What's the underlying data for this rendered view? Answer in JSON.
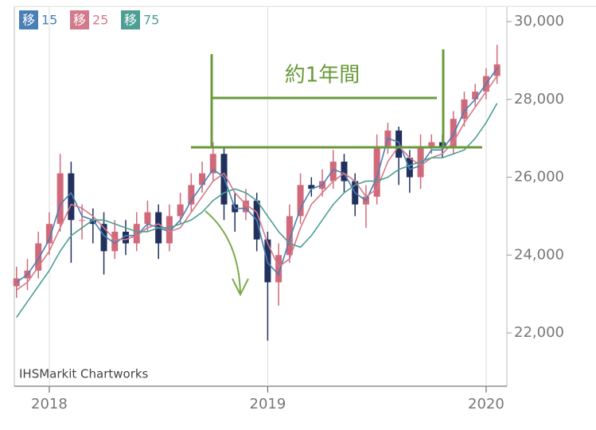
{
  "chart_data": {
    "type": "candlestick",
    "ma_label": "移",
    "source": "IHSMarkit Chartworks",
    "annotation": "約1年間",
    "x": [
      2017.85,
      2017.9,
      2017.95,
      2018.0,
      2018.05,
      2018.1,
      2018.15,
      2018.2,
      2018.25,
      2018.3,
      2018.35,
      2018.4,
      2018.45,
      2018.5,
      2018.55,
      2018.6,
      2018.65,
      2018.7,
      2018.75,
      2018.8,
      2018.85,
      2018.9,
      2018.95,
      2019.0,
      2019.05,
      2019.1,
      2019.15,
      2019.2,
      2019.25,
      2019.3,
      2019.35,
      2019.4,
      2019.45,
      2019.5,
      2019.55,
      2019.6,
      2019.65,
      2019.7,
      2019.75,
      2019.8,
      2019.85,
      2019.9,
      2019.95,
      2020.0,
      2020.05
    ],
    "open": [
      23200,
      23400,
      23600,
      24300,
      24800,
      26100,
      24900,
      24900,
      24800,
      24100,
      24600,
      24300,
      24800,
      25100,
      24300,
      25000,
      25300,
      25800,
      26100,
      26600,
      25300,
      25100,
      25400,
      24400,
      23300,
      24000,
      25000,
      25800,
      25700,
      25900,
      26400,
      25900,
      25300,
      25500,
      26800,
      27200,
      26500,
      26000,
      26800,
      26900,
      26800,
      27500,
      28000,
      28200,
      28600
    ],
    "high": [
      23700,
      23900,
      24600,
      25100,
      26600,
      26400,
      25300,
      25200,
      25100,
      24900,
      24900,
      25100,
      25400,
      25300,
      25300,
      25600,
      26100,
      26400,
      26900,
      26800,
      25600,
      25700,
      25600,
      24600,
      24300,
      25300,
      26100,
      26000,
      26200,
      26700,
      26600,
      26100,
      25800,
      27100,
      27400,
      27300,
      26700,
      27100,
      27100,
      27100,
      27700,
      28200,
      28400,
      28800,
      29400
    ],
    "low": [
      22900,
      23100,
      23400,
      24000,
      24600,
      23800,
      24400,
      24300,
      23500,
      23900,
      24000,
      24100,
      24600,
      23900,
      24100,
      24800,
      25100,
      25600,
      25900,
      24900,
      24600,
      24900,
      24100,
      21800,
      22700,
      23800,
      24800,
      25500,
      25500,
      25700,
      25600,
      25000,
      24700,
      25300,
      26600,
      25800,
      25600,
      25700,
      26600,
      26500,
      26600,
      27300,
      27800,
      28000,
      28400
    ],
    "close": [
      23400,
      23600,
      24300,
      24800,
      26100,
      24900,
      24900,
      24800,
      24100,
      24600,
      24300,
      24800,
      25100,
      24300,
      25000,
      25300,
      25800,
      26100,
      26600,
      25300,
      25100,
      25400,
      24400,
      23300,
      24000,
      25000,
      25800,
      25700,
      25900,
      26400,
      25900,
      25300,
      25500,
      26800,
      27200,
      26500,
      26000,
      26800,
      26900,
      26800,
      27500,
      28000,
      28200,
      28600,
      28900
    ],
    "up_color": "#d06a7a",
    "down_color": "#22305e",
    "series": [
      {
        "name": "15",
        "color": "#4a7fb5",
        "values": [
          23300,
          23500,
          23900,
          24400,
          25300,
          25600,
          25000,
          24900,
          24500,
          24300,
          24500,
          24500,
          24800,
          24700,
          24600,
          24900,
          25400,
          25800,
          26200,
          26000,
          25200,
          25200,
          24900,
          23800,
          23500,
          24400,
          25200,
          25700,
          25800,
          26200,
          26100,
          25600,
          25400,
          26000,
          27000,
          26900,
          26200,
          26300,
          26700,
          26700,
          27100,
          27700,
          28000,
          28400,
          28800
        ]
      },
      {
        "name": "25",
        "color": "#d27a8a",
        "values": [
          23100,
          23300,
          23700,
          24100,
          24700,
          25300,
          25200,
          25000,
          24700,
          24400,
          24400,
          24500,
          24700,
          24800,
          24600,
          24700,
          25100,
          25500,
          25900,
          26100,
          25600,
          25300,
          25100,
          24300,
          23700,
          23900,
          24700,
          25300,
          25600,
          25900,
          26100,
          25900,
          25500,
          25700,
          26400,
          26800,
          26500,
          26300,
          26500,
          26600,
          26900,
          27400,
          27800,
          28200,
          28600
        ]
      },
      {
        "name": "75",
        "color": "#4d9e94",
        "values": [
          22400,
          22800,
          23200,
          23600,
          24100,
          24500,
          24700,
          24900,
          24900,
          24800,
          24700,
          24600,
          24600,
          24700,
          24700,
          24800,
          24900,
          25100,
          25400,
          25600,
          25700,
          25600,
          25400,
          25000,
          24600,
          24300,
          24200,
          24500,
          24900,
          25300,
          25600,
          25800,
          25900,
          25900,
          26000,
          26200,
          26300,
          26400,
          26500,
          26500,
          26600,
          26700,
          27000,
          27400,
          27900
        ]
      }
    ],
    "xlim": [
      2017.84,
      2020.095
    ],
    "xticks": [
      2018,
      2019,
      2020
    ],
    "ylim": [
      20630,
      30390
    ],
    "yticks": [
      {
        "value": 22000,
        "label": "22,000"
      },
      {
        "value": 24000,
        "label": "24,000"
      },
      {
        "value": 26000,
        "label": "26,000"
      },
      {
        "value": 28000,
        "label": "28,000"
      },
      {
        "value": 30000,
        "label": "30,000"
      }
    ],
    "grid": true
  }
}
